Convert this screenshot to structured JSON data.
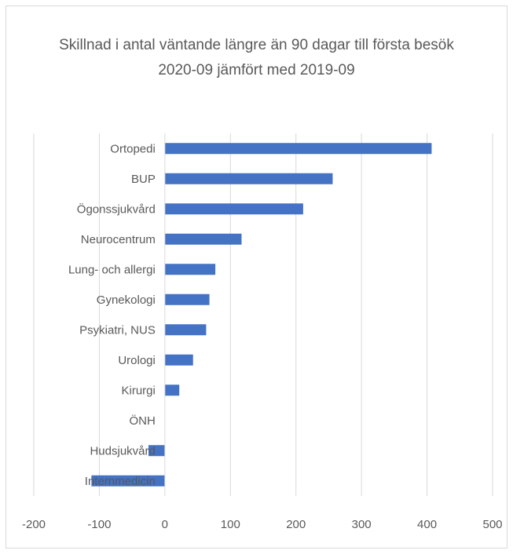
{
  "chart_data": {
    "type": "bar",
    "orientation": "horizontal",
    "title": "Skillnad i antal väntande längre än 90 dagar till första besök",
    "subtitle": "2020-09 jämfört med 2019-09",
    "categories": [
      "Ortopedi",
      "BUP",
      "Ögonssjukvård",
      "Neurocentrum",
      "Lung- och allergi",
      "Gynekologi",
      "Psykiatri, NUS",
      "Urologi",
      "Kirurgi",
      "ÖNH",
      "Hudsjukvård",
      "Internmedicin"
    ],
    "values": [
      407,
      256,
      211,
      117,
      77,
      68,
      63,
      43,
      22,
      0,
      -25,
      -112
    ],
    "xlim": [
      -200,
      500
    ],
    "xticks": [
      "-200",
      "-100",
      "0",
      "100",
      "200",
      "300",
      "400",
      "500"
    ],
    "grid": true,
    "legend": "none",
    "color": "#4472c4"
  }
}
